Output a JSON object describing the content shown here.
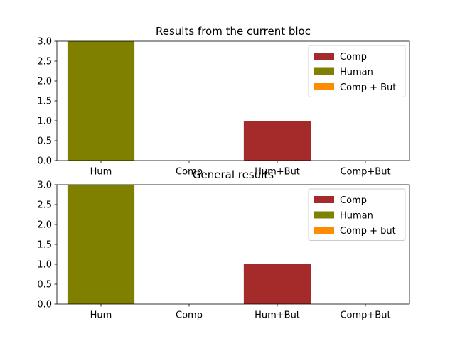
{
  "chart_data": [
    {
      "type": "bar",
      "stacked": true,
      "title": "Results from the current bloc",
      "categories": [
        "Hum",
        "Comp",
        "Hum+But",
        "Comp+But"
      ],
      "ylim": [
        0,
        3.0
      ],
      "yticks": [
        0.0,
        0.5,
        1.0,
        1.5,
        2.0,
        2.5,
        3.0
      ],
      "ytick_labels": [
        "0.0",
        "0.5",
        "1.0",
        "1.5",
        "2.0",
        "2.5",
        "3.0"
      ],
      "grid": false,
      "legend_position": "top-right",
      "series": [
        {
          "name": "Comp",
          "color": "#a52a2a",
          "values": [
            0,
            0,
            1,
            0
          ]
        },
        {
          "name": "Human",
          "color": "#808000",
          "values": [
            3,
            0,
            0,
            0
          ]
        },
        {
          "name": "Comp + But",
          "color": "#ff8c00",
          "values": [
            0,
            0,
            0,
            0
          ]
        }
      ]
    },
    {
      "type": "bar",
      "stacked": true,
      "title": "General results",
      "categories": [
        "Hum",
        "Comp",
        "Hum+But",
        "Comp+But"
      ],
      "ylim": [
        0,
        3.0
      ],
      "yticks": [
        0.0,
        0.5,
        1.0,
        1.5,
        2.0,
        2.5,
        3.0
      ],
      "ytick_labels": [
        "0.0",
        "0.5",
        "1.0",
        "1.5",
        "2.0",
        "2.5",
        "3.0"
      ],
      "grid": false,
      "legend_position": "top-right",
      "series": [
        {
          "name": "Comp",
          "color": "#a52a2a",
          "values": [
            0,
            0,
            1,
            0
          ]
        },
        {
          "name": "Human",
          "color": "#808000",
          "values": [
            3,
            0,
            0,
            0
          ]
        },
        {
          "name": "Comp + but",
          "color": "#ff8c00",
          "values": [
            0,
            0,
            0,
            0
          ]
        }
      ]
    }
  ]
}
